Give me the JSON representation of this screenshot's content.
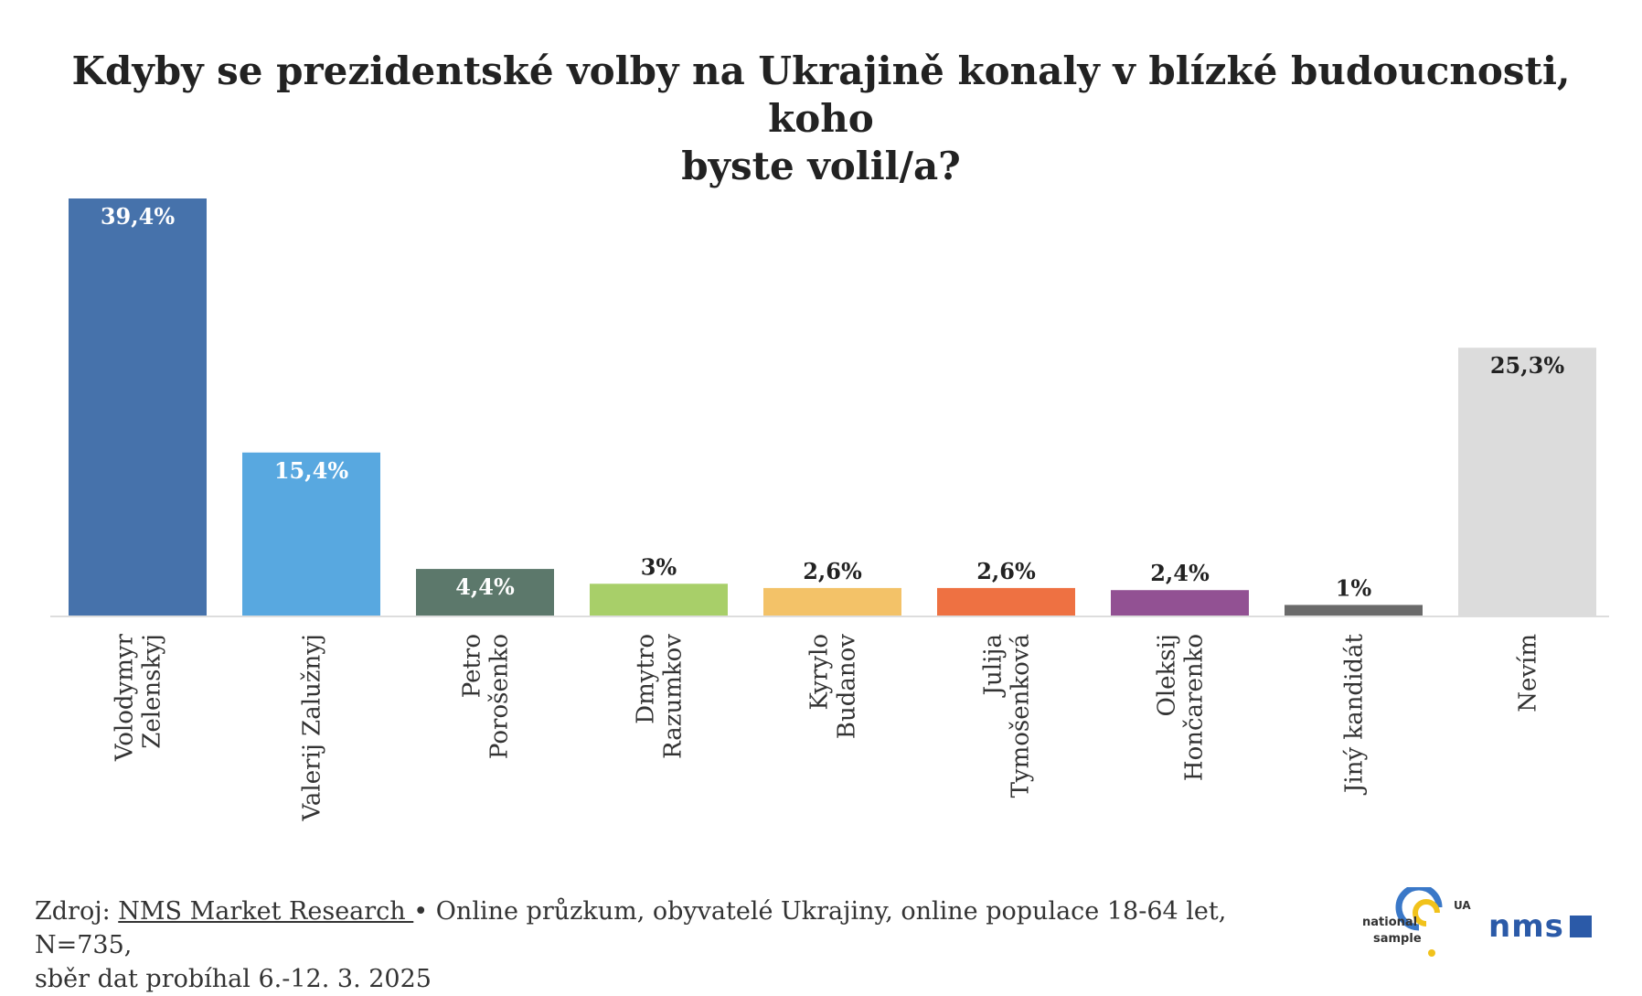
{
  "title_lines": [
    "Kdyby se prezidentské volby na Ukrajině konaly v blízké budoucnosti, koho",
    "byste volil/a?"
  ],
  "chart_data": {
    "type": "bar",
    "title": "Kdyby se prezidentské volby na Ukrajině konaly v blízké budoucnosti, koho byste volil/a?",
    "categories": [
      [
        "Volodymyr",
        "Zelenskyj"
      ],
      [
        "Valerij Zalužnyj"
      ],
      [
        "Petro",
        "Porošenko"
      ],
      [
        "Dmytro",
        "Razumkov"
      ],
      [
        "Kyrylo",
        "Budanov"
      ],
      [
        "Julija",
        "Tymošenková"
      ],
      [
        "Oleksij",
        "Hončarenko"
      ],
      [
        "Jiný kandidát"
      ],
      [
        "Nevím"
      ]
    ],
    "values": [
      39.4,
      15.4,
      4.4,
      3,
      2.6,
      2.6,
      2.4,
      1,
      25.3
    ],
    "value_labels": [
      "39,4%",
      "15,4%",
      "4,4%",
      "3%",
      "2,6%",
      "2,6%",
      "2,4%",
      "1%",
      "25,3%"
    ],
    "colors": [
      "#4672ab",
      "#58a8e0",
      "#5c786b",
      "#a8cf69",
      "#f3c268",
      "#ee7142",
      "#925193",
      "#6a6a6a",
      "#dcdcdc"
    ],
    "label_colors": [
      "#ffffff",
      "#ffffff",
      "#ffffff",
      "#222222",
      "#222222",
      "#222222",
      "#222222",
      "#222222",
      "#222222"
    ],
    "label_inside": [
      true,
      true,
      true,
      false,
      false,
      false,
      false,
      false,
      true
    ],
    "ylim": [
      0,
      39.4
    ],
    "grid": false,
    "xlabel": "",
    "ylabel": ""
  },
  "footer": {
    "prefix": "Zdroj: ",
    "source_link": "NMS Market Research ",
    "rest_line1": "• Online průzkum, obyvatelé Ukrajiny, online populace 18-64 let, N=735,",
    "line2": "sběr dat probíhal 6.-12. 3. 2025"
  },
  "logos": {
    "national_sample_word1": "national",
    "national_sample_word2": "sample",
    "national_sample_tag": "UA",
    "nms": "nms"
  }
}
